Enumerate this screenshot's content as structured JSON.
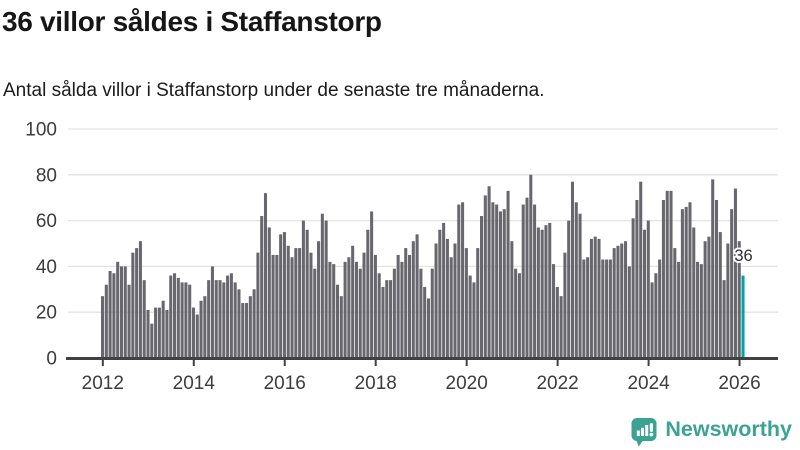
{
  "header": {
    "title": "36 villor såldes i Staffanstorp",
    "subtitle": "Antal sålda villor i Staffanstorp under de senaste tre månaderna."
  },
  "chart_data": {
    "type": "bar",
    "title": "36 villor såldes i Staffanstorp",
    "xlabel": "",
    "ylabel": "",
    "x_start": "2012-01",
    "x_interval": "monthly",
    "x_tick_labels": [
      "2012",
      "2014",
      "2016",
      "2018",
      "2020",
      "2022",
      "2024",
      "2026"
    ],
    "y_tick_labels": [
      "0",
      "20",
      "40",
      "60",
      "80",
      "100"
    ],
    "y_ticks": [
      0,
      20,
      40,
      60,
      80,
      100
    ],
    "ylim": [
      0,
      100
    ],
    "grid": true,
    "legend_position": "none",
    "values": [
      27,
      32,
      38,
      37,
      42,
      40,
      40,
      32,
      46,
      48,
      51,
      34,
      21,
      15,
      22,
      22,
      25,
      21,
      36,
      37,
      35,
      33,
      33,
      32,
      22,
      19,
      25,
      27,
      34,
      40,
      34,
      34,
      33,
      36,
      37,
      33,
      30,
      24,
      24,
      27,
      30,
      46,
      62,
      72,
      57,
      45,
      45,
      54,
      55,
      49,
      44,
      48,
      48,
      60,
      56,
      46,
      39,
      51,
      63,
      60,
      42,
      41,
      32,
      27,
      42,
      44,
      49,
      42,
      39,
      46,
      56,
      64,
      45,
      37,
      31,
      34,
      34,
      39,
      45,
      42,
      48,
      45,
      51,
      54,
      39,
      31,
      26,
      39,
      50,
      56,
      59,
      52,
      44,
      50,
      67,
      68,
      48,
      36,
      33,
      48,
      62,
      71,
      75,
      68,
      67,
      64,
      65,
      73,
      51,
      39,
      37,
      67,
      70,
      80,
      67,
      57,
      56,
      58,
      59,
      41,
      31,
      27,
      46,
      60,
      77,
      68,
      63,
      43,
      44,
      52,
      53,
      52,
      43,
      43,
      43,
      48,
      49,
      50,
      51,
      40,
      61,
      69,
      77,
      56,
      60,
      33,
      37,
      43,
      69,
      73,
      73,
      48,
      42,
      65,
      66,
      68,
      57,
      42,
      41,
      51,
      53,
      78,
      69,
      55,
      34,
      50,
      65,
      74,
      51,
      36
    ],
    "highlight_last": true,
    "annotation": {
      "text": "36"
    }
  },
  "branding": {
    "label": "Newsworthy",
    "icon": "newsworthy-speech-bubble-chart-icon"
  },
  "colors": {
    "bar": "#67676d",
    "highlight": "#00a3aa",
    "brand": "#3aa392",
    "grid": "#e3e3e3",
    "axis": "#414141",
    "tick_text": "#3c3c3c",
    "annotation_text": "#2f2f2f",
    "title_text": "#161616"
  }
}
